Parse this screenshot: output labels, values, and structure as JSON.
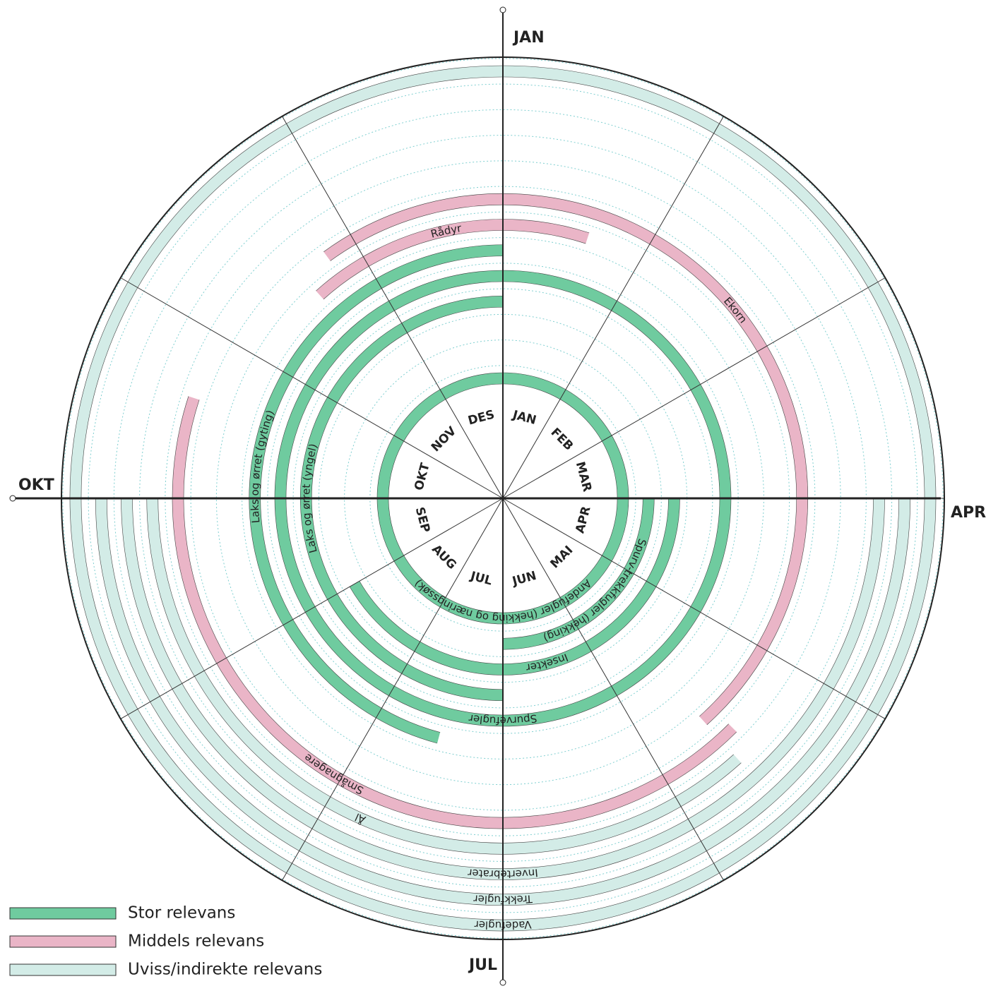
{
  "axis_labels": [
    "JAN",
    "APR",
    "JUL",
    "OKT"
  ],
  "months": [
    "JAN",
    "FEB",
    "MAR",
    "APR",
    "MAI",
    "JUN",
    "JUL",
    "AUG",
    "SEP",
    "OKT",
    "NOV",
    "DES"
  ],
  "rings": [
    {
      "label": "Andefugler (hekking og næringssøk)",
      "color": "#6fcb9f",
      "start": 0,
      "end": 12
    },
    {
      "label": "Spurv-trekkfugler (hekking)",
      "color": "#6fcb9f",
      "start": 3,
      "end": 6
    },
    {
      "label": "Insekter",
      "color": "#6fcb9f",
      "start": 3,
      "end": 8
    },
    {
      "label": "Laks og ørret (yngel)",
      "color": "#6fcb9f",
      "start": 6,
      "end": 12
    },
    {
      "label": "Spurvefugler",
      "color": "#6fcb9f",
      "start": 0,
      "end": 12
    },
    {
      "label": "Laks og ørret (gyting)",
      "color": "#6fcb9f",
      "start": 6.5,
      "end": 12
    },
    {
      "label": "Rådyr",
      "color": "#eab5c7",
      "start": 10.6,
      "end": 12.6
    },
    {
      "label": "Ekorn",
      "color": "#eab5c7",
      "start": 10.8,
      "end": 16.6
    },
    {
      "label": "Smågnagere",
      "color": "#eab5c7",
      "start": 4.5,
      "end": 9.6
    },
    {
      "label": "Ål",
      "color": "#d3ece7",
      "start": 4.6,
      "end": 9
    },
    {
      "label": "Invertebrater",
      "color": "#d3ece7",
      "start": 3,
      "end": 9
    },
    {
      "label": "Trekkfugler",
      "color": "#d3ece7",
      "start": 3,
      "end": 9
    },
    {
      "label": "Vadefugler",
      "color": "#d3ece7",
      "start": 0,
      "end": 12
    }
  ],
  "legend": [
    {
      "label": "Stor relevans",
      "color": "#6fcb9f"
    },
    {
      "label": "Middels relevans",
      "color": "#eab5c7"
    },
    {
      "label": "Uviss/indirekte relevans",
      "color": "#d3ece7"
    }
  ]
}
